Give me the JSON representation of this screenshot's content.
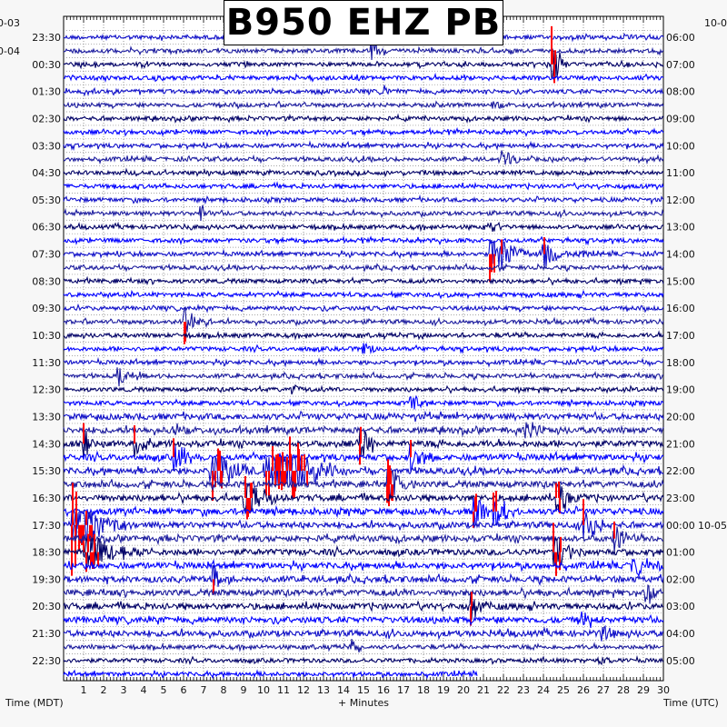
{
  "chart_data": {
    "type": "helicorder",
    "title": "B950 EHZ PB",
    "xlabel": "+ Minutes",
    "left_axis_label": "Time (MDT)",
    "right_axis_label": "Time (UTC)",
    "xlim": [
      0,
      30
    ],
    "x_ticks": [
      "1",
      "2",
      "3",
      "4",
      "5",
      "6",
      "7",
      "8",
      "9",
      "10",
      "11",
      "12",
      "13",
      "14",
      "15",
      "16",
      "17",
      "18",
      "19",
      "20",
      "21",
      "22",
      "23",
      "24",
      "25",
      "26",
      "27",
      "28",
      "29",
      "30"
    ],
    "left_date_labels": [
      {
        "text": "10-03",
        "row": -1
      },
      {
        "text": "10-04",
        "row": 1
      }
    ],
    "right_date_labels": [
      {
        "text": "10-0",
        "row": -1
      },
      {
        "text": "10-05",
        "row": 36
      }
    ],
    "left_time_labels": [
      "23:30",
      "00:30",
      "01:30",
      "02:30",
      "03:30",
      "04:30",
      "05:30",
      "06:30",
      "07:30",
      "08:30",
      "09:30",
      "10:30",
      "11:30",
      "12:30",
      "13:30",
      "14:30",
      "15:30",
      "16:30",
      "17:30",
      "18:30",
      "19:30",
      "20:30",
      "21:30",
      "22:30"
    ],
    "right_time_labels": [
      "06:00",
      "07:00",
      "08:00",
      "09:00",
      "10:00",
      "11:00",
      "12:00",
      "13:00",
      "14:00",
      "15:00",
      "16:00",
      "17:00",
      "18:00",
      "19:00",
      "20:00",
      "21:00",
      "22:00",
      "23:00",
      "00:00",
      "01:00",
      "02:00",
      "03:00",
      "04:00",
      "05:00"
    ],
    "rows": 48,
    "last_row_end_minute": 20.7,
    "trace_colors": [
      "#1010c8",
      "#1c1c9e",
      "#000066",
      "#0000ff"
    ],
    "clip_color": "#ff0000",
    "events": [
      [
        1,
        15.3,
        20,
        0.3
      ],
      [
        2,
        24.4,
        45,
        0.3
      ],
      [
        4,
        16,
        10,
        0.3
      ],
      [
        5,
        21.4,
        10,
        0.3
      ],
      [
        9,
        21.9,
        12,
        0.5
      ],
      [
        13,
        6.8,
        12,
        0.3
      ],
      [
        14,
        21.2,
        12,
        0.4
      ],
      [
        16,
        21.3,
        40,
        0.8
      ],
      [
        16,
        23.9,
        18,
        0.8
      ],
      [
        21,
        6.0,
        35,
        0.5
      ],
      [
        23,
        14.9,
        10,
        0.4
      ],
      [
        25,
        2.7,
        12,
        0.5
      ],
      [
        26,
        11.4,
        8,
        0.3
      ],
      [
        27,
        17.3,
        12,
        0.5
      ],
      [
        29,
        5.4,
        14,
        0.4
      ],
      [
        29,
        23.1,
        14,
        0.4
      ],
      [
        30,
        1.0,
        25,
        0.3
      ],
      [
        30,
        3.5,
        25,
        0.4
      ],
      [
        30,
        14.8,
        25,
        0.4
      ],
      [
        31,
        17.3,
        20,
        0.6
      ],
      [
        31,
        5.5,
        22,
        0.5
      ],
      [
        32,
        7.3,
        40,
        1.0
      ],
      [
        32,
        10.0,
        40,
        1.2
      ],
      [
        32,
        11.3,
        40,
        1.0
      ],
      [
        33,
        16.2,
        30,
        0.5
      ],
      [
        34,
        9.0,
        30,
        0.8
      ],
      [
        34,
        24.6,
        25,
        0.6
      ],
      [
        35,
        20.5,
        25,
        0.5
      ],
      [
        35,
        21.5,
        30,
        0.5
      ],
      [
        36,
        0.4,
        60,
        1.0
      ],
      [
        36,
        26.0,
        30,
        0.5
      ],
      [
        37,
        27.5,
        25,
        0.4
      ],
      [
        38,
        1.0,
        30,
        1.2
      ],
      [
        38,
        24.5,
        40,
        0.5
      ],
      [
        39,
        28.4,
        20,
        0.5
      ],
      [
        40,
        7.4,
        20,
        0.4
      ],
      [
        41,
        29.1,
        20,
        0.5
      ],
      [
        42,
        20.3,
        25,
        0.4
      ],
      [
        43,
        25.8,
        15,
        0.4
      ],
      [
        44,
        26.9,
        15,
        0.3
      ],
      [
        45,
        14.3,
        15,
        0.3
      ],
      [
        46,
        26.7,
        12,
        0.3
      ]
    ]
  }
}
